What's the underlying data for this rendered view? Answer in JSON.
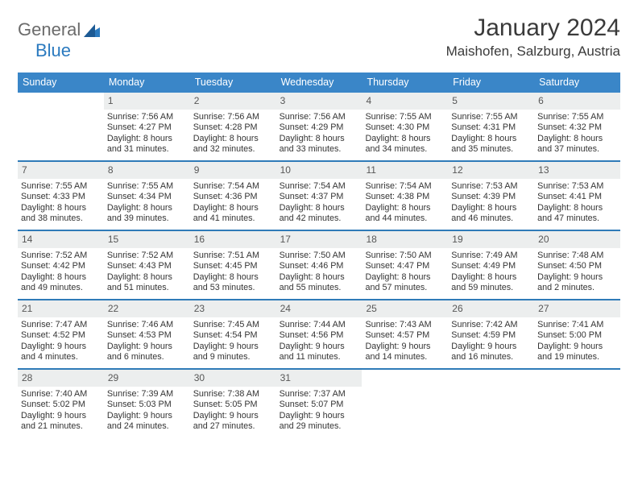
{
  "colors": {
    "header_bg": "#3a86c8",
    "header_text": "#ffffff",
    "daynum_bg": "#eceeee",
    "week_divider": "#2f7bb8",
    "body_text": "#343434",
    "logo_general": "#6b6b6b",
    "logo_blue": "#2b7abf"
  },
  "logo": {
    "part1": "General",
    "part2": "Blue"
  },
  "title": {
    "month": "January 2024",
    "location": "Maishofen, Salzburg, Austria"
  },
  "day_headers": [
    "Sunday",
    "Monday",
    "Tuesday",
    "Wednesday",
    "Thursday",
    "Friday",
    "Saturday"
  ],
  "weeks": [
    [
      {
        "n": "",
        "sr": "",
        "ss": "",
        "d1": "",
        "d2": ""
      },
      {
        "n": "1",
        "sr": "Sunrise: 7:56 AM",
        "ss": "Sunset: 4:27 PM",
        "d1": "Daylight: 8 hours",
        "d2": "and 31 minutes."
      },
      {
        "n": "2",
        "sr": "Sunrise: 7:56 AM",
        "ss": "Sunset: 4:28 PM",
        "d1": "Daylight: 8 hours",
        "d2": "and 32 minutes."
      },
      {
        "n": "3",
        "sr": "Sunrise: 7:56 AM",
        "ss": "Sunset: 4:29 PM",
        "d1": "Daylight: 8 hours",
        "d2": "and 33 minutes."
      },
      {
        "n": "4",
        "sr": "Sunrise: 7:55 AM",
        "ss": "Sunset: 4:30 PM",
        "d1": "Daylight: 8 hours",
        "d2": "and 34 minutes."
      },
      {
        "n": "5",
        "sr": "Sunrise: 7:55 AM",
        "ss": "Sunset: 4:31 PM",
        "d1": "Daylight: 8 hours",
        "d2": "and 35 minutes."
      },
      {
        "n": "6",
        "sr": "Sunrise: 7:55 AM",
        "ss": "Sunset: 4:32 PM",
        "d1": "Daylight: 8 hours",
        "d2": "and 37 minutes."
      }
    ],
    [
      {
        "n": "7",
        "sr": "Sunrise: 7:55 AM",
        "ss": "Sunset: 4:33 PM",
        "d1": "Daylight: 8 hours",
        "d2": "and 38 minutes."
      },
      {
        "n": "8",
        "sr": "Sunrise: 7:55 AM",
        "ss": "Sunset: 4:34 PM",
        "d1": "Daylight: 8 hours",
        "d2": "and 39 minutes."
      },
      {
        "n": "9",
        "sr": "Sunrise: 7:54 AM",
        "ss": "Sunset: 4:36 PM",
        "d1": "Daylight: 8 hours",
        "d2": "and 41 minutes."
      },
      {
        "n": "10",
        "sr": "Sunrise: 7:54 AM",
        "ss": "Sunset: 4:37 PM",
        "d1": "Daylight: 8 hours",
        "d2": "and 42 minutes."
      },
      {
        "n": "11",
        "sr": "Sunrise: 7:54 AM",
        "ss": "Sunset: 4:38 PM",
        "d1": "Daylight: 8 hours",
        "d2": "and 44 minutes."
      },
      {
        "n": "12",
        "sr": "Sunrise: 7:53 AM",
        "ss": "Sunset: 4:39 PM",
        "d1": "Daylight: 8 hours",
        "d2": "and 46 minutes."
      },
      {
        "n": "13",
        "sr": "Sunrise: 7:53 AM",
        "ss": "Sunset: 4:41 PM",
        "d1": "Daylight: 8 hours",
        "d2": "and 47 minutes."
      }
    ],
    [
      {
        "n": "14",
        "sr": "Sunrise: 7:52 AM",
        "ss": "Sunset: 4:42 PM",
        "d1": "Daylight: 8 hours",
        "d2": "and 49 minutes."
      },
      {
        "n": "15",
        "sr": "Sunrise: 7:52 AM",
        "ss": "Sunset: 4:43 PM",
        "d1": "Daylight: 8 hours",
        "d2": "and 51 minutes."
      },
      {
        "n": "16",
        "sr": "Sunrise: 7:51 AM",
        "ss": "Sunset: 4:45 PM",
        "d1": "Daylight: 8 hours",
        "d2": "and 53 minutes."
      },
      {
        "n": "17",
        "sr": "Sunrise: 7:50 AM",
        "ss": "Sunset: 4:46 PM",
        "d1": "Daylight: 8 hours",
        "d2": "and 55 minutes."
      },
      {
        "n": "18",
        "sr": "Sunrise: 7:50 AM",
        "ss": "Sunset: 4:47 PM",
        "d1": "Daylight: 8 hours",
        "d2": "and 57 minutes."
      },
      {
        "n": "19",
        "sr": "Sunrise: 7:49 AM",
        "ss": "Sunset: 4:49 PM",
        "d1": "Daylight: 8 hours",
        "d2": "and 59 minutes."
      },
      {
        "n": "20",
        "sr": "Sunrise: 7:48 AM",
        "ss": "Sunset: 4:50 PM",
        "d1": "Daylight: 9 hours",
        "d2": "and 2 minutes."
      }
    ],
    [
      {
        "n": "21",
        "sr": "Sunrise: 7:47 AM",
        "ss": "Sunset: 4:52 PM",
        "d1": "Daylight: 9 hours",
        "d2": "and 4 minutes."
      },
      {
        "n": "22",
        "sr": "Sunrise: 7:46 AM",
        "ss": "Sunset: 4:53 PM",
        "d1": "Daylight: 9 hours",
        "d2": "and 6 minutes."
      },
      {
        "n": "23",
        "sr": "Sunrise: 7:45 AM",
        "ss": "Sunset: 4:54 PM",
        "d1": "Daylight: 9 hours",
        "d2": "and 9 minutes."
      },
      {
        "n": "24",
        "sr": "Sunrise: 7:44 AM",
        "ss": "Sunset: 4:56 PM",
        "d1": "Daylight: 9 hours",
        "d2": "and 11 minutes."
      },
      {
        "n": "25",
        "sr": "Sunrise: 7:43 AM",
        "ss": "Sunset: 4:57 PM",
        "d1": "Daylight: 9 hours",
        "d2": "and 14 minutes."
      },
      {
        "n": "26",
        "sr": "Sunrise: 7:42 AM",
        "ss": "Sunset: 4:59 PM",
        "d1": "Daylight: 9 hours",
        "d2": "and 16 minutes."
      },
      {
        "n": "27",
        "sr": "Sunrise: 7:41 AM",
        "ss": "Sunset: 5:00 PM",
        "d1": "Daylight: 9 hours",
        "d2": "and 19 minutes."
      }
    ],
    [
      {
        "n": "28",
        "sr": "Sunrise: 7:40 AM",
        "ss": "Sunset: 5:02 PM",
        "d1": "Daylight: 9 hours",
        "d2": "and 21 minutes."
      },
      {
        "n": "29",
        "sr": "Sunrise: 7:39 AM",
        "ss": "Sunset: 5:03 PM",
        "d1": "Daylight: 9 hours",
        "d2": "and 24 minutes."
      },
      {
        "n": "30",
        "sr": "Sunrise: 7:38 AM",
        "ss": "Sunset: 5:05 PM",
        "d1": "Daylight: 9 hours",
        "d2": "and 27 minutes."
      },
      {
        "n": "31",
        "sr": "Sunrise: 7:37 AM",
        "ss": "Sunset: 5:07 PM",
        "d1": "Daylight: 9 hours",
        "d2": "and 29 minutes."
      },
      {
        "n": "",
        "sr": "",
        "ss": "",
        "d1": "",
        "d2": ""
      },
      {
        "n": "",
        "sr": "",
        "ss": "",
        "d1": "",
        "d2": ""
      },
      {
        "n": "",
        "sr": "",
        "ss": "",
        "d1": "",
        "d2": ""
      }
    ]
  ]
}
